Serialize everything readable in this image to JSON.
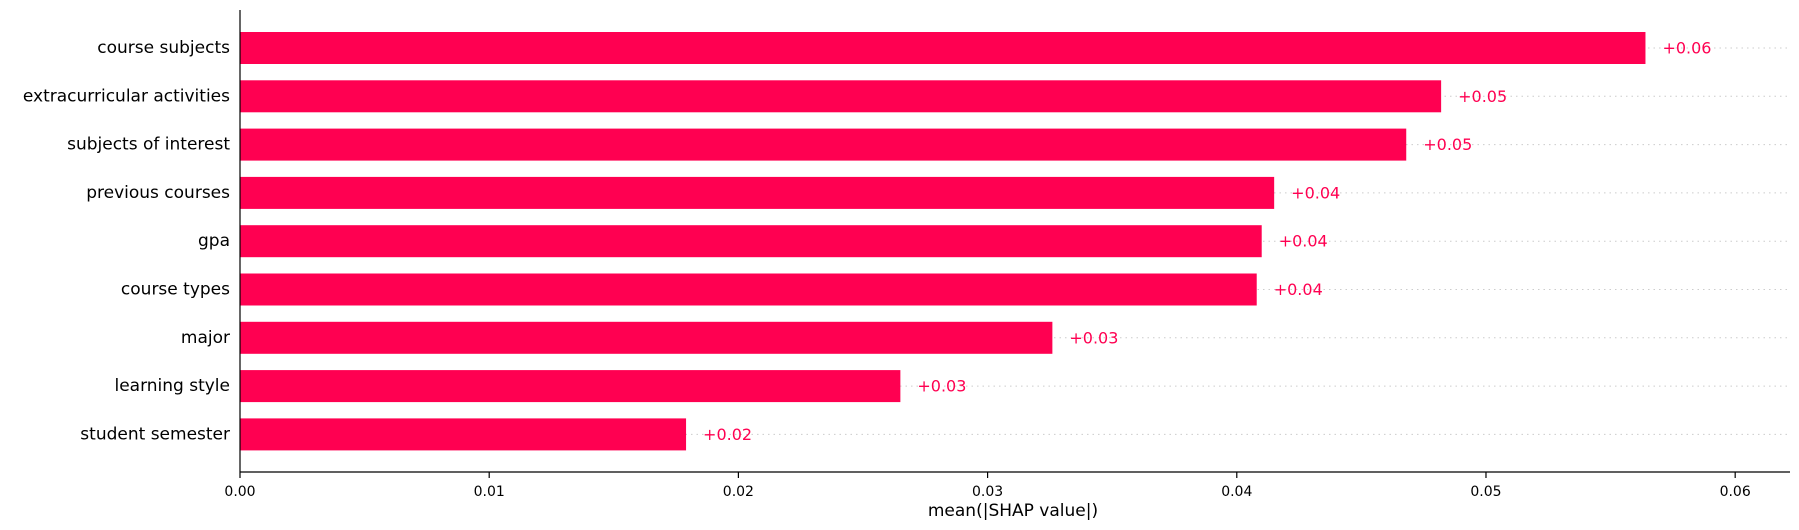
{
  "chart_data": {
    "type": "bar",
    "orientation": "horizontal",
    "categories": [
      "course subjects",
      "extracurricular activities",
      "subjects of interest",
      "previous courses",
      "gpa",
      "course types",
      "major",
      "learning style",
      "student semester"
    ],
    "values": [
      0.0564,
      0.0482,
      0.0468,
      0.0415,
      0.041,
      0.0408,
      0.0326,
      0.0265,
      0.0179
    ],
    "value_labels": [
      "+0.06",
      "+0.05",
      "+0.05",
      "+0.04",
      "+0.04",
      "+0.04",
      "+0.03",
      "+0.03",
      "+0.02"
    ],
    "xlabel": "mean(|SHAP value|)",
    "xlim": [
      0,
      0.0622
    ],
    "xticks": [
      0.0,
      0.01,
      0.02,
      0.03,
      0.04,
      0.05,
      0.06
    ],
    "xtick_labels": [
      "0.00",
      "0.01",
      "0.02",
      "0.03",
      "0.04",
      "0.05",
      "0.06"
    ],
    "grid": false,
    "colors": {
      "bar": "#ff0051",
      "value_label": "#ff0051",
      "guide": "#cccccc",
      "axis": "#000000"
    }
  }
}
